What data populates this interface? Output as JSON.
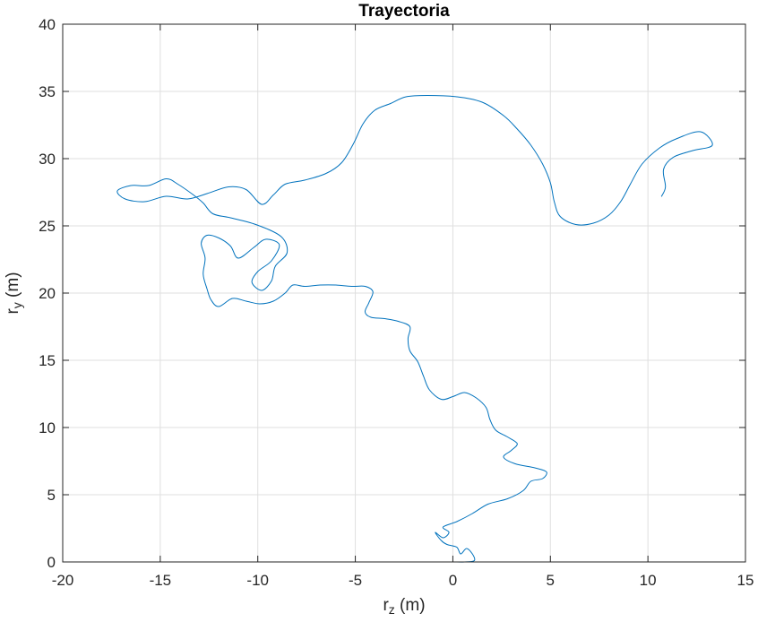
{
  "colors": {
    "series": "#0072bd",
    "axis": "#262626",
    "grid": "#dfdfdf"
  },
  "chart_data": {
    "type": "line",
    "title": "Trayectoria",
    "xlabel_main": "r",
    "xlabel_sub": "z",
    "xlabel_unit": " (m)",
    "ylabel_main": "r",
    "ylabel_sub": "y",
    "ylabel_unit": " (m)",
    "xlim": [
      -20,
      15
    ],
    "ylim": [
      0,
      40
    ],
    "xticks": [
      -20,
      -15,
      -10,
      -5,
      0,
      5,
      10,
      15
    ],
    "yticks": [
      0,
      5,
      10,
      15,
      20,
      25,
      30,
      35,
      40
    ],
    "xtick_labels": [
      "-20",
      "-15",
      "-10",
      "-5",
      "0",
      "5",
      "10",
      "15"
    ],
    "ytick_labels": [
      "0",
      "5",
      "10",
      "15",
      "20",
      "25",
      "30",
      "35",
      "40"
    ],
    "grid": true,
    "series": [
      {
        "points": [
          [
            0.1,
            0.0
          ],
          [
            0.6,
            0.0
          ],
          [
            1.1,
            0.1
          ],
          [
            1.0,
            0.6
          ],
          [
            0.7,
            1.0
          ],
          [
            0.4,
            0.6
          ],
          [
            0.2,
            1.1
          ],
          [
            -0.3,
            1.3
          ],
          [
            -0.6,
            1.6
          ],
          [
            -0.9,
            2.2
          ],
          [
            -0.5,
            1.8
          ],
          [
            -0.2,
            2.2
          ],
          [
            -0.5,
            2.6
          ],
          [
            0.2,
            3.0
          ],
          [
            1.0,
            3.6
          ],
          [
            1.8,
            4.3
          ],
          [
            2.8,
            4.7
          ],
          [
            3.6,
            5.3
          ],
          [
            4.0,
            6.0
          ],
          [
            4.6,
            6.2
          ],
          [
            4.8,
            6.7
          ],
          [
            4.2,
            7.0
          ],
          [
            3.2,
            7.3
          ],
          [
            2.6,
            7.8
          ],
          [
            3.0,
            8.3
          ],
          [
            3.3,
            8.8
          ],
          [
            2.8,
            9.3
          ],
          [
            2.2,
            9.8
          ],
          [
            1.9,
            10.6
          ],
          [
            1.7,
            11.5
          ],
          [
            1.2,
            12.2
          ],
          [
            0.6,
            12.6
          ],
          [
            0.0,
            12.3
          ],
          [
            -0.6,
            12.1
          ],
          [
            -1.2,
            12.8
          ],
          [
            -1.5,
            13.8
          ],
          [
            -1.8,
            14.9
          ],
          [
            -2.2,
            15.7
          ],
          [
            -2.3,
            16.6
          ],
          [
            -2.2,
            17.5
          ],
          [
            -2.8,
            17.9
          ],
          [
            -3.5,
            18.1
          ],
          [
            -4.2,
            18.2
          ],
          [
            -4.5,
            18.6
          ],
          [
            -4.3,
            19.3
          ],
          [
            -4.1,
            20.1
          ],
          [
            -4.5,
            20.5
          ],
          [
            -5.2,
            20.5
          ],
          [
            -6.0,
            20.6
          ],
          [
            -6.8,
            20.6
          ],
          [
            -7.6,
            20.5
          ],
          [
            -8.2,
            20.6
          ],
          [
            -8.6,
            20.0
          ],
          [
            -9.2,
            19.4
          ],
          [
            -9.9,
            19.2
          ],
          [
            -10.6,
            19.4
          ],
          [
            -11.3,
            19.6
          ],
          [
            -12.0,
            19.0
          ],
          [
            -12.4,
            19.5
          ],
          [
            -12.6,
            20.3
          ],
          [
            -12.8,
            21.4
          ],
          [
            -12.7,
            22.6
          ],
          [
            -12.9,
            23.7
          ],
          [
            -12.6,
            24.3
          ],
          [
            -12.0,
            24.1
          ],
          [
            -11.4,
            23.5
          ],
          [
            -11.0,
            22.6
          ],
          [
            -10.2,
            23.4
          ],
          [
            -9.6,
            24.0
          ],
          [
            -8.9,
            23.6
          ],
          [
            -9.3,
            22.4
          ],
          [
            -10.0,
            21.6
          ],
          [
            -10.3,
            20.8
          ],
          [
            -9.8,
            20.2
          ],
          [
            -9.3,
            20.9
          ],
          [
            -9.1,
            22.0
          ],
          [
            -8.5,
            23.0
          ],
          [
            -8.8,
            24.2
          ],
          [
            -10.1,
            25.1
          ],
          [
            -11.4,
            25.6
          ],
          [
            -12.3,
            25.9
          ],
          [
            -12.8,
            26.7
          ],
          [
            -13.3,
            27.3
          ],
          [
            -14.1,
            28.1
          ],
          [
            -14.7,
            28.5
          ],
          [
            -15.6,
            28.0
          ],
          [
            -16.5,
            28.0
          ],
          [
            -17.2,
            27.6
          ],
          [
            -16.8,
            27.0
          ],
          [
            -15.8,
            26.8
          ],
          [
            -14.7,
            27.2
          ],
          [
            -13.6,
            27.0
          ],
          [
            -12.6,
            27.4
          ],
          [
            -11.5,
            27.9
          ],
          [
            -10.6,
            27.7
          ],
          [
            -9.8,
            26.6
          ],
          [
            -9.2,
            27.3
          ],
          [
            -8.6,
            28.1
          ],
          [
            -7.6,
            28.4
          ],
          [
            -6.5,
            28.9
          ],
          [
            -5.7,
            29.7
          ],
          [
            -5.1,
            31.1
          ],
          [
            -4.6,
            32.6
          ],
          [
            -4.0,
            33.6
          ],
          [
            -3.2,
            34.1
          ],
          [
            -2.4,
            34.6
          ],
          [
            -1.3,
            34.7
          ],
          [
            0.2,
            34.6
          ],
          [
            1.5,
            34.2
          ],
          [
            2.6,
            33.2
          ],
          [
            3.3,
            32.2
          ],
          [
            4.0,
            31.0
          ],
          [
            4.6,
            29.6
          ],
          [
            5.0,
            28.2
          ],
          [
            5.2,
            26.8
          ],
          [
            5.5,
            25.7
          ],
          [
            6.3,
            25.1
          ],
          [
            7.2,
            25.2
          ],
          [
            8.0,
            25.8
          ],
          [
            8.6,
            26.8
          ],
          [
            9.1,
            28.1
          ],
          [
            9.7,
            29.6
          ],
          [
            10.6,
            30.8
          ],
          [
            11.5,
            31.5
          ],
          [
            12.7,
            32.0
          ],
          [
            13.3,
            31.0
          ],
          [
            12.3,
            30.6
          ],
          [
            11.3,
            30.1
          ],
          [
            10.8,
            29.2
          ],
          [
            10.9,
            27.9
          ],
          [
            10.7,
            27.2
          ]
        ]
      }
    ]
  }
}
